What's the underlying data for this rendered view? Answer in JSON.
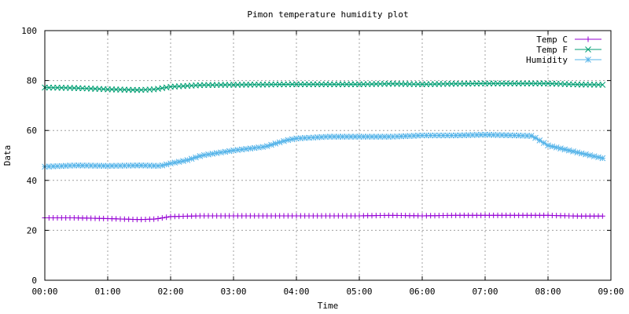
{
  "chart_data": {
    "type": "line",
    "title": "Pimon temperature   humidity plot",
    "xlabel": "Time",
    "ylabel": "Data",
    "x_tick_labels": [
      "00:00",
      "01:00",
      "02:00",
      "03:00",
      "04:00",
      "05:00",
      "06:00",
      "07:00",
      "08:00",
      "09:00"
    ],
    "y_tick_labels": [
      "0",
      "20",
      "40",
      "60",
      "80",
      "100"
    ],
    "xlim": [
      "00:00",
      "09:00"
    ],
    "ylim": [
      0,
      100
    ],
    "grid": true,
    "legend_position": "top-right",
    "series": [
      {
        "name": "Temp C",
        "color": "#9400d3",
        "marker": "plus",
        "points": [
          [
            "00:00",
            25
          ],
          [
            "00:30",
            25
          ],
          [
            "01:00",
            24.7
          ],
          [
            "01:30",
            24.3
          ],
          [
            "01:45",
            24.5
          ],
          [
            "02:00",
            25.5
          ],
          [
            "02:30",
            25.8
          ],
          [
            "03:00",
            25.8
          ],
          [
            "04:00",
            25.8
          ],
          [
            "05:00",
            25.8
          ],
          [
            "05:30",
            26
          ],
          [
            "06:00",
            25.8
          ],
          [
            "06:30",
            26
          ],
          [
            "07:00",
            26
          ],
          [
            "07:30",
            26
          ],
          [
            "08:00",
            26
          ],
          [
            "08:30",
            25.7
          ],
          [
            "08:53",
            25.7
          ]
        ]
      },
      {
        "name": "Temp F",
        "color": "#009e73",
        "marker": "cross",
        "points": [
          [
            "00:00",
            77.2
          ],
          [
            "00:30",
            77
          ],
          [
            "01:00",
            76.5
          ],
          [
            "01:30",
            76.2
          ],
          [
            "01:45",
            76.5
          ],
          [
            "02:00",
            77.5
          ],
          [
            "02:30",
            78.2
          ],
          [
            "03:00",
            78.3
          ],
          [
            "04:00",
            78.5
          ],
          [
            "05:00",
            78.5
          ],
          [
            "05:30",
            78.7
          ],
          [
            "06:00",
            78.5
          ],
          [
            "06:30",
            78.7
          ],
          [
            "07:00",
            78.8
          ],
          [
            "07:30",
            78.8
          ],
          [
            "08:00",
            78.8
          ],
          [
            "08:30",
            78.4
          ],
          [
            "08:53",
            78.3
          ]
        ]
      },
      {
        "name": "Humidity",
        "color": "#56b4e9",
        "marker": "star",
        "points": [
          [
            "00:00",
            45.5
          ],
          [
            "00:30",
            46
          ],
          [
            "01:00",
            45.8
          ],
          [
            "01:30",
            46
          ],
          [
            "01:50",
            45.8
          ],
          [
            "02:00",
            46.8
          ],
          [
            "02:15",
            48
          ],
          [
            "02:30",
            50
          ],
          [
            "03:00",
            52
          ],
          [
            "03:30",
            53.5
          ],
          [
            "03:50",
            56
          ],
          [
            "04:00",
            56.8
          ],
          [
            "04:30",
            57.5
          ],
          [
            "05:00",
            57.5
          ],
          [
            "05:30",
            57.5
          ],
          [
            "06:00",
            58
          ],
          [
            "06:30",
            58
          ],
          [
            "07:00",
            58.3
          ],
          [
            "07:30",
            58
          ],
          [
            "07:45",
            57.8
          ],
          [
            "08:00",
            54
          ],
          [
            "08:30",
            51
          ],
          [
            "08:53",
            48.8
          ]
        ]
      }
    ]
  }
}
